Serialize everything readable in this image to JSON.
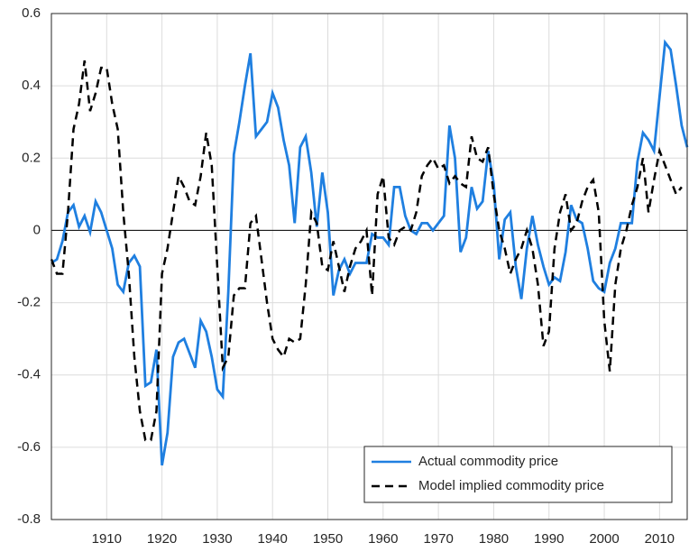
{
  "chart_data": {
    "type": "line",
    "x": [
      1900,
      1901,
      1902,
      1903,
      1904,
      1905,
      1906,
      1907,
      1908,
      1909,
      1910,
      1911,
      1912,
      1913,
      1914,
      1915,
      1916,
      1917,
      1918,
      1919,
      1920,
      1921,
      1922,
      1923,
      1924,
      1925,
      1926,
      1927,
      1928,
      1929,
      1930,
      1931,
      1932,
      1933,
      1934,
      1935,
      1936,
      1937,
      1938,
      1939,
      1940,
      1941,
      1942,
      1943,
      1944,
      1945,
      1946,
      1947,
      1948,
      1949,
      1950,
      1951,
      1952,
      1953,
      1954,
      1955,
      1956,
      1957,
      1958,
      1959,
      1960,
      1961,
      1962,
      1963,
      1964,
      1965,
      1966,
      1967,
      1968,
      1969,
      1970,
      1971,
      1972,
      1973,
      1974,
      1975,
      1976,
      1977,
      1978,
      1979,
      1980,
      1981,
      1982,
      1983,
      1984,
      1985,
      1986,
      1987,
      1988,
      1989,
      1990,
      1991,
      1992,
      1993,
      1994,
      1995,
      1996,
      1997,
      1998,
      1999,
      2000,
      2001,
      2002,
      2003,
      2004,
      2005,
      2006,
      2007,
      2008,
      2009,
      2010,
      2011,
      2012,
      2013,
      2014,
      2015
    ],
    "series": [
      {
        "name": "Actual commodity price",
        "color": "#1f7fe0",
        "dash": false,
        "values": [
          -0.09,
          -0.08,
          -0.03,
          0.05,
          0.07,
          0.01,
          0.04,
          -0.005,
          0.08,
          0.05,
          0.0,
          -0.05,
          -0.15,
          -0.17,
          -0.09,
          -0.07,
          -0.1,
          -0.43,
          -0.42,
          -0.33,
          -0.65,
          -0.56,
          -0.35,
          -0.31,
          -0.3,
          -0.34,
          -0.38,
          -0.25,
          -0.28,
          -0.35,
          -0.44,
          -0.46,
          -0.17,
          0.21,
          0.3,
          0.4,
          0.49,
          0.26,
          0.28,
          0.3,
          0.38,
          0.34,
          0.25,
          0.18,
          0.02,
          0.23,
          0.26,
          0.16,
          0.01,
          0.16,
          0.05,
          -0.18,
          -0.11,
          -0.08,
          -0.12,
          -0.09,
          -0.09,
          -0.09,
          -0.01,
          -0.02,
          -0.02,
          -0.04,
          0.12,
          0.12,
          0.04,
          0.0,
          -0.01,
          0.02,
          0.02,
          0.0,
          0.02,
          0.04,
          0.29,
          0.2,
          -0.06,
          -0.02,
          0.12,
          0.06,
          0.08,
          0.22,
          0.13,
          -0.08,
          0.03,
          0.05,
          -0.1,
          -0.19,
          -0.05,
          0.04,
          -0.04,
          -0.1,
          -0.15,
          -0.13,
          -0.14,
          -0.06,
          0.07,
          0.03,
          0.02,
          -0.05,
          -0.14,
          -0.16,
          -0.17,
          -0.09,
          -0.05,
          0.02,
          0.02,
          0.02,
          0.19,
          0.27,
          0.25,
          0.22,
          0.37,
          0.52,
          0.5,
          0.4,
          0.29,
          0.23
        ]
      },
      {
        "name": "Model implied commodity price",
        "color": "#000000",
        "dash": true,
        "values": [
          -0.08,
          -0.12,
          -0.12,
          0.05,
          0.28,
          0.35,
          0.47,
          0.33,
          0.38,
          0.45,
          0.45,
          0.35,
          0.28,
          0.05,
          -0.12,
          -0.35,
          -0.5,
          -0.58,
          -0.58,
          -0.5,
          -0.12,
          -0.05,
          0.05,
          0.15,
          0.12,
          0.08,
          0.07,
          0.15,
          0.27,
          0.18,
          -0.1,
          -0.38,
          -0.35,
          -0.18,
          -0.16,
          -0.16,
          0.02,
          0.04,
          -0.08,
          -0.2,
          -0.3,
          -0.33,
          -0.35,
          -0.3,
          -0.31,
          -0.3,
          -0.15,
          0.05,
          0.02,
          -0.1,
          -0.11,
          -0.03,
          -0.1,
          -0.17,
          -0.1,
          -0.05,
          -0.03,
          0.0,
          -0.18,
          0.1,
          0.15,
          -0.02,
          -0.04,
          0.0,
          0.01,
          0.0,
          0.05,
          0.15,
          0.18,
          0.2,
          0.17,
          0.18,
          0.13,
          0.15,
          0.13,
          0.12,
          0.26,
          0.2,
          0.19,
          0.23,
          0.1,
          0.0,
          -0.05,
          -0.12,
          -0.08,
          -0.05,
          0.0,
          -0.05,
          -0.15,
          -0.32,
          -0.28,
          -0.05,
          0.05,
          0.1,
          0.0,
          0.02,
          0.08,
          0.12,
          0.14,
          0.05,
          -0.25,
          -0.39,
          -0.15,
          -0.05,
          0.0,
          0.07,
          0.12,
          0.2,
          0.05,
          0.14,
          0.22,
          0.18,
          0.14,
          0.1,
          0.12,
          null
        ]
      }
    ],
    "xlim": [
      1900,
      2015
    ],
    "xticks": [
      1910,
      1920,
      1930,
      1940,
      1950,
      1960,
      1970,
      1980,
      1990,
      2000,
      2010
    ],
    "ylim": [
      -0.8,
      0.6
    ],
    "yticks": [
      -0.8,
      -0.6,
      -0.4,
      -0.2,
      0,
      0.2,
      0.4,
      0.6
    ],
    "grid": true,
    "hline": 0,
    "legend": "lower right"
  }
}
